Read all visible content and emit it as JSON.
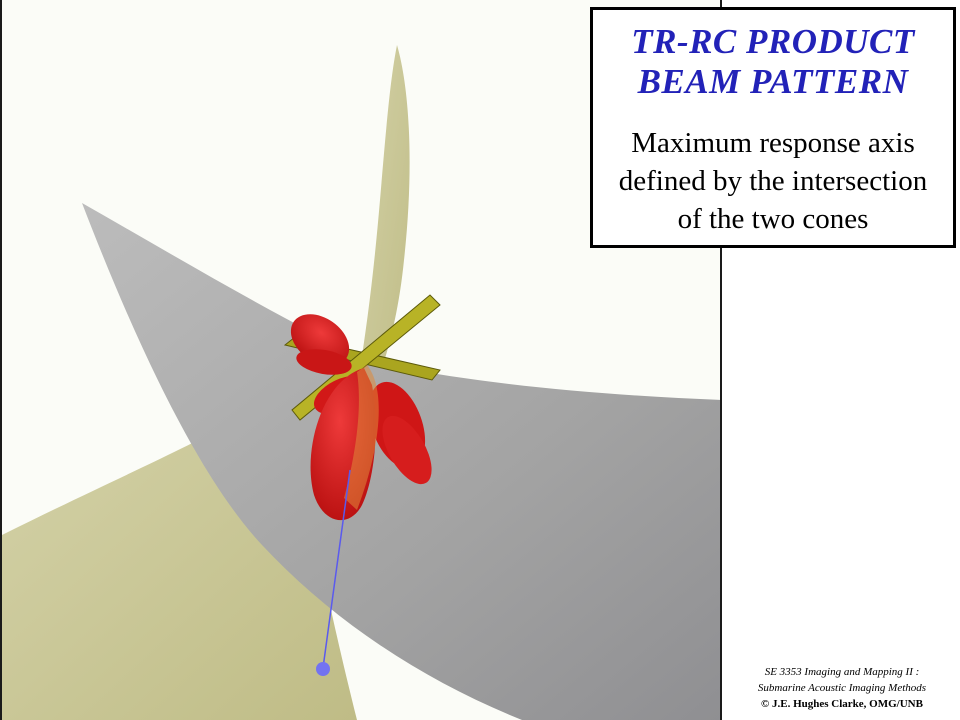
{
  "title": {
    "line1": "TR-RC PRODUCT",
    "line2": "BEAM PATTERN"
  },
  "subtitle": [
    "Maximum response axis",
    "defined by the intersection",
    "of the two cones"
  ],
  "credits": {
    "line1": "SE 3353 Imaging and Mapping II :",
    "line2": "Submarine Acoustic Imaging Methods",
    "line3": "© J.E. Hughes Clarke, OMG/UNB"
  },
  "colors": {
    "title_blue": "#2222b8",
    "cone_olive": "#c9c796",
    "cone_grey": "#9b9b9b",
    "beam_red": "#dd1a1a",
    "transducer_olive": "#a8a31e",
    "axis_blue": "#6c6cf0"
  }
}
